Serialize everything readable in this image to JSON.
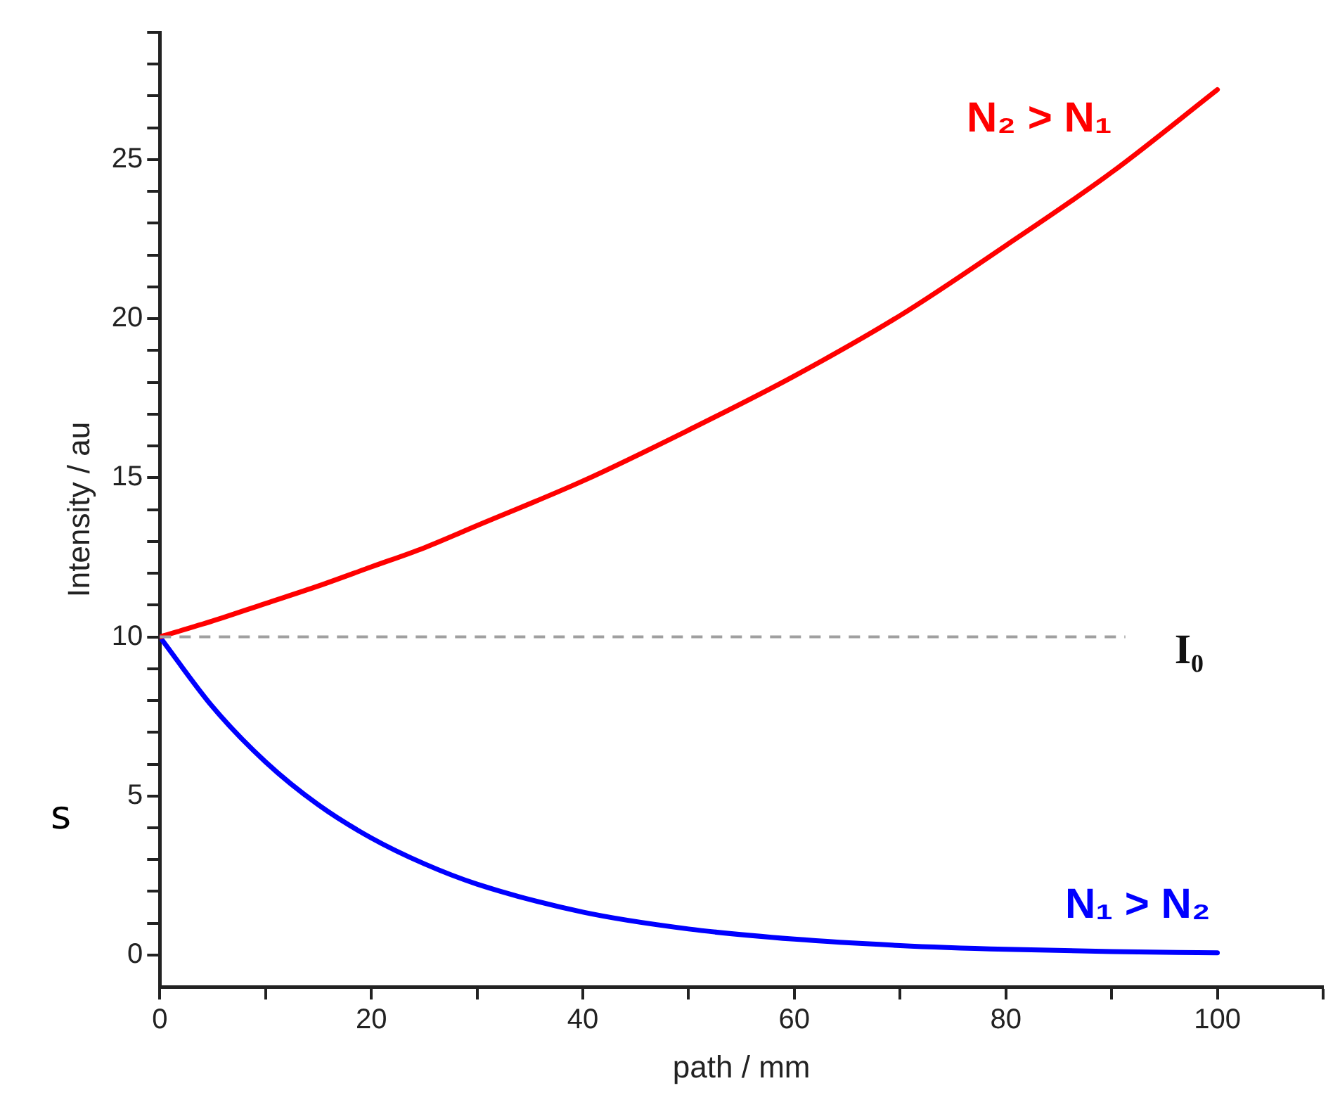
{
  "chart_data": {
    "type": "line",
    "xlabel": "path / mm",
    "ylabel": "Intensity / au",
    "xlim": [
      0,
      110
    ],
    "ylim": [
      -1,
      29
    ],
    "xticks": [
      0,
      {
        "value": 10,
        "label": null
      },
      20,
      {
        "value": 30,
        "label": null
      },
      40,
      {
        "value": 50,
        "label": null
      },
      60,
      {
        "value": 70,
        "label": null
      },
      80,
      {
        "value": 90,
        "label": null
      },
      100,
      {
        "value": 110,
        "label": null
      }
    ],
    "yticks": [
      0,
      {
        "value": 1,
        "label": null
      },
      {
        "value": 2,
        "label": null
      },
      {
        "value": 3,
        "label": null
      },
      {
        "value": 4,
        "label": null
      },
      5,
      {
        "value": 6,
        "label": null
      },
      {
        "value": 7,
        "label": null
      },
      {
        "value": 8,
        "label": null
      },
      {
        "value": 9,
        "label": null
      },
      10,
      {
        "value": 11,
        "label": null
      },
      {
        "value": 12,
        "label": null
      },
      {
        "value": 13,
        "label": null
      },
      {
        "value": 14,
        "label": null
      },
      15,
      {
        "value": 16,
        "label": null
      },
      {
        "value": 17,
        "label": null
      },
      {
        "value": 18,
        "label": null
      },
      {
        "value": 19,
        "label": null
      },
      20,
      {
        "value": 21,
        "label": null
      },
      {
        "value": 22,
        "label": null
      },
      {
        "value": 23,
        "label": null
      },
      {
        "value": 24,
        "label": null
      },
      25,
      {
        "value": 26,
        "label": null
      },
      {
        "value": 27,
        "label": null
      },
      {
        "value": 28,
        "label": null
      },
      {
        "value": 29,
        "label": null
      }
    ],
    "x": [
      0,
      5,
      10,
      15,
      20,
      25,
      30,
      40,
      50,
      60,
      70,
      80,
      90,
      100
    ],
    "series": [
      {
        "name": "N₂ > N₁",
        "color": "#ff0000",
        "values": [
          10,
          10.5,
          11.05,
          11.6,
          12.2,
          12.8,
          13.5,
          14.9,
          16.5,
          18.2,
          20.1,
          22.3,
          24.6,
          27.2
        ]
      },
      {
        "name": "N₁ > N₂",
        "color": "#0000ff",
        "values": [
          10,
          7.8,
          6.07,
          4.72,
          3.68,
          2.87,
          2.23,
          1.35,
          0.82,
          0.5,
          0.3,
          0.18,
          0.11,
          0.07
        ]
      }
    ],
    "ref_lines": [
      {
        "axis": "y",
        "value": 10,
        "label": "I₀",
        "color": "#a0a0a0",
        "line_style": "dashed"
      }
    ],
    "annotations": [
      "s"
    ],
    "grid": false,
    "marker": "none",
    "line_style": "solid"
  }
}
